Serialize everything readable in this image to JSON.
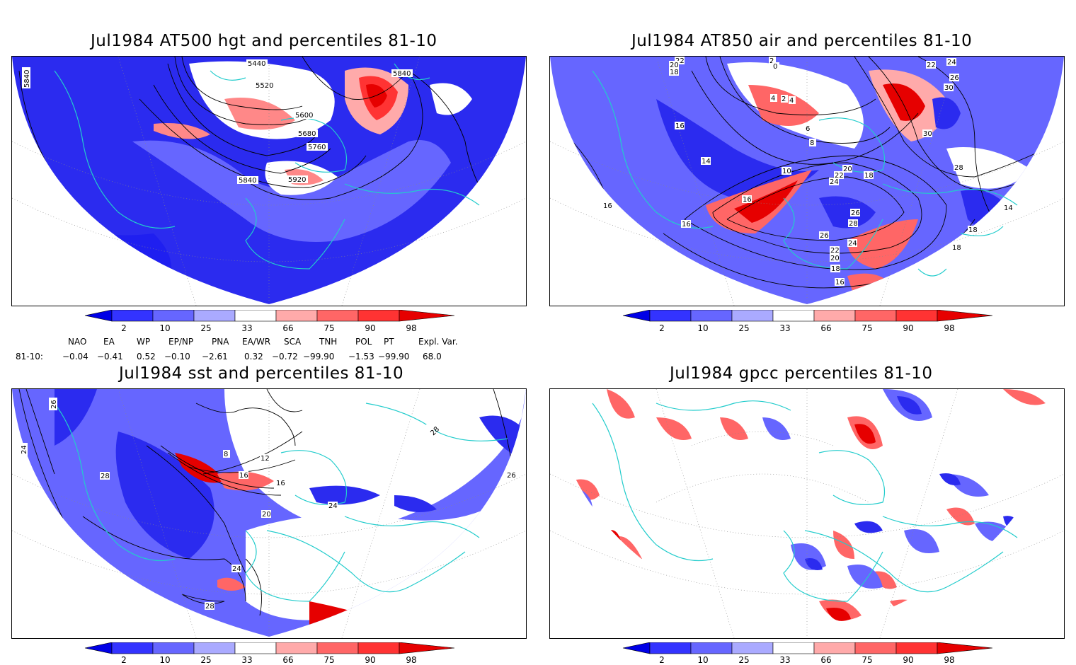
{
  "panels": [
    {
      "title": "Jul1984 AT500 hgt and percentiles 81-10",
      "contour_labels": [
        "5440",
        "5520",
        "5600",
        "5680",
        "5760",
        "5840",
        "5920",
        "5840",
        "5840"
      ]
    },
    {
      "title": "Jul1984 AT850 air and percentiles 81-10",
      "contour_labels": [
        "22",
        "20",
        "18",
        "2",
        "0",
        "24",
        "22",
        "26",
        "30",
        "4",
        "2",
        "4",
        "6",
        "8",
        "30",
        "16",
        "14",
        "10",
        "20",
        "22",
        "24",
        "18",
        "28",
        "16",
        "16",
        "26",
        "28",
        "16",
        "26",
        "24",
        "22",
        "20",
        "18",
        "16",
        "14",
        "18",
        "18"
      ]
    },
    {
      "title": "Jul1984 sst and percentiles 81-10",
      "contour_labels": [
        "26",
        "24",
        "28",
        "8",
        "12",
        "16",
        "16",
        "20",
        "24",
        "28",
        "24",
        "28",
        "26"
      ]
    },
    {
      "title": "Jul1984 gpcc percentiles 81-10",
      "contour_labels": []
    }
  ],
  "colorbar": {
    "ticks": [
      "2",
      "10",
      "25",
      "33",
      "66",
      "75",
      "90",
      "98"
    ],
    "colors": [
      "#0000e6",
      "#3333ff",
      "#6666ff",
      "#aaaaff",
      "#ffffff",
      "#ffaaaa",
      "#ff6666",
      "#ff3333",
      "#e60000"
    ]
  },
  "indices": {
    "header": [
      "NAO",
      "EA",
      "WP",
      "EP/NP",
      "PNA",
      "EA/WR",
      "SCA",
      "TNH",
      "POL",
      "PT",
      "Expl. Var."
    ],
    "row_label": "81-10:",
    "values": [
      "−0.04",
      "−0.41",
      "0.52",
      "−0.10",
      "−2.61",
      "0.32",
      "−0.72",
      "−99.90",
      "−1.53",
      "−99.90",
      "68.0"
    ]
  },
  "colors": {
    "land_outline": "#22cccc",
    "contour": "#000000"
  }
}
